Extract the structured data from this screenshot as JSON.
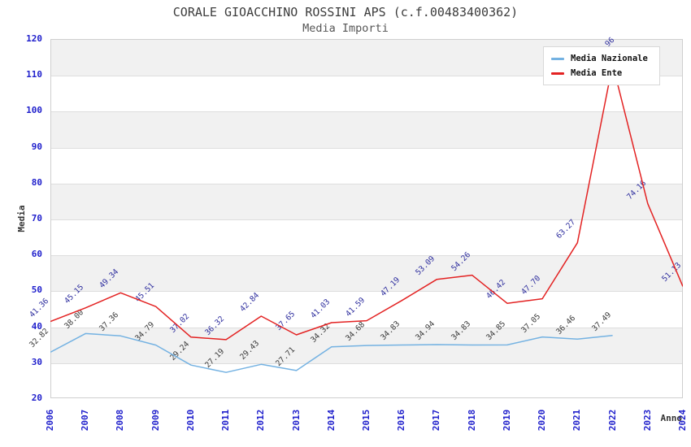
{
  "header": {
    "title": "CORALE GIOACCHINO ROSSINI APS (c.f.00483400362)",
    "subtitle": "Media Importi"
  },
  "axes": {
    "y_label": "Media",
    "x_label": "Anno",
    "y_ticks": [
      "120",
      "110",
      "100",
      "90",
      "80",
      "70",
      "60",
      "50",
      "40",
      "30",
      "20"
    ],
    "x_ticks": [
      "2006",
      "2007",
      "2008",
      "2009",
      "2010",
      "2011",
      "2012",
      "2013",
      "2014",
      "2015",
      "2016",
      "2017",
      "2018",
      "2019",
      "2020",
      "2021",
      "2022",
      "2023",
      "2024"
    ],
    "tick_color": "#2020cc"
  },
  "legend": {
    "items": [
      {
        "label": "Media Nazionale",
        "color": "#74b2e2"
      },
      {
        "label": "Media Ente",
        "color": "#e32222"
      }
    ]
  },
  "colors": {
    "band_gray": "#f1f1f1",
    "gridline": "#dedede",
    "plot_border": "#cfcfcf",
    "title_text": "#3c3c3c",
    "blue_series_line": "#74b2e2",
    "red_series_line": "#e32222",
    "blue_series_label_text": "#3a3a3a",
    "red_series_label_text": "#2e2e9e"
  },
  "chart_data": {
    "type": "line",
    "title": "CORALE GIOACCHINO ROSSINI APS (c.f.00483400362)",
    "subtitle": "Media Importi",
    "xlabel": "Anno",
    "ylabel": "Media",
    "x": [
      2006,
      2007,
      2008,
      2009,
      2010,
      2011,
      2012,
      2013,
      2014,
      2015,
      2016,
      2017,
      2018,
      2019,
      2020,
      2021,
      2022,
      2023,
      2024
    ],
    "ylim": [
      20,
      120
    ],
    "y_gridline_step": 10,
    "grid": "horizontal gridlines with alternating gray/white decade bands",
    "legend_position": "upper right",
    "series": [
      {
        "name": "Media Nazionale",
        "color": "#74b2e2",
        "label_color": "#3a3a3a",
        "values": [
          32.82,
          38.0,
          37.36,
          34.79,
          29.24,
          27.19,
          29.43,
          27.71,
          34.32,
          34.68,
          34.83,
          34.94,
          34.83,
          34.85,
          37.05,
          36.46,
          37.49,
          null,
          null
        ],
        "labels": [
          "32.82",
          "38.00",
          "37.36",
          "34.79",
          "29.24",
          "27.19",
          "29.43",
          "27.71",
          "34.32",
          "34.68",
          "34.83",
          "34.94",
          "34.83",
          "34.85",
          "37.05",
          "36.46",
          "37.49",
          null,
          null
        ]
      },
      {
        "name": "Media Ente",
        "color": "#e32222",
        "label_color": "#2e2e9e",
        "values": [
          41.36,
          45.15,
          49.34,
          45.51,
          37.02,
          36.32,
          42.84,
          37.65,
          41.03,
          41.59,
          47.19,
          53.09,
          54.26,
          46.42,
          47.7,
          63.27,
          112.96,
          74.16,
          51.13
        ],
        "labels": [
          "41.36",
          "45.15",
          "49.34",
          "45.51",
          "37.02",
          "36.32",
          "42.84",
          "37.65",
          "41.03",
          "41.59",
          "47.19",
          "53.09",
          "54.26",
          "46.42",
          "47.70",
          "63.27",
          "112.96",
          "74.16",
          "51.13"
        ]
      }
    ],
    "notes": "2022 Media Ente peak and its data label are mostly hidden behind the legend box; peak value estimated from the line apex, only the label tail is visible above the legend."
  }
}
